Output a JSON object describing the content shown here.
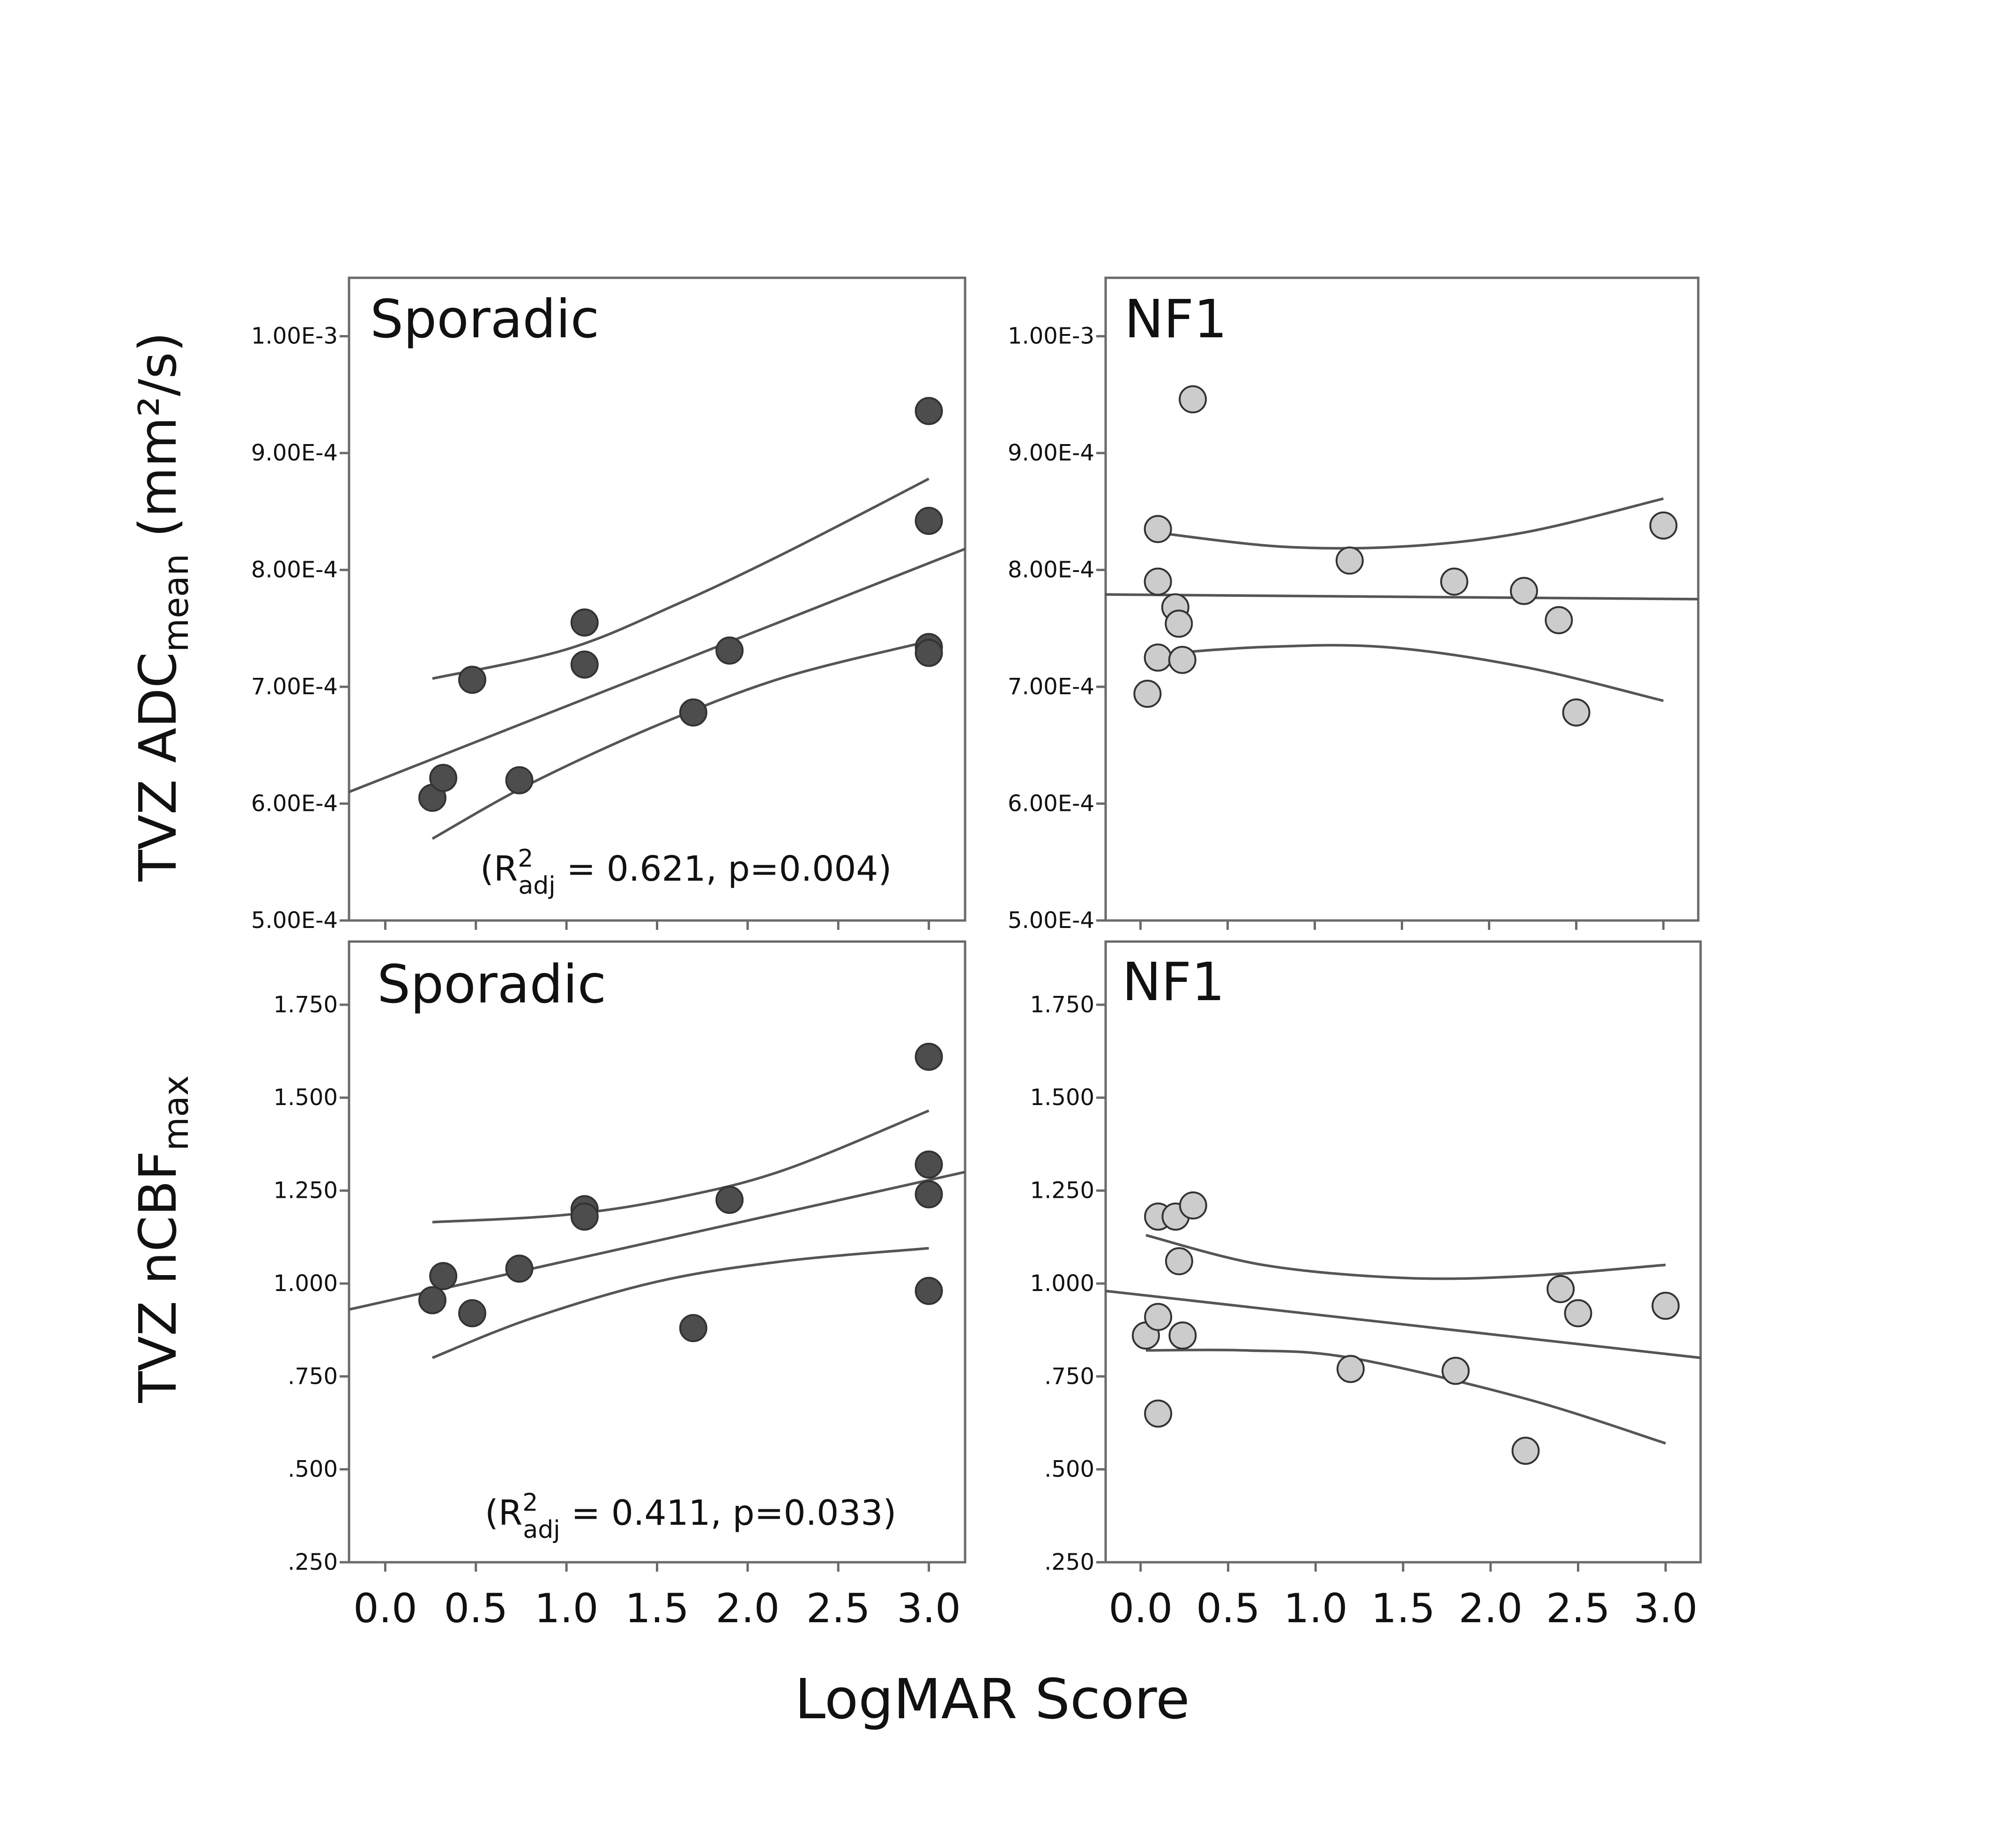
{
  "figure": {
    "y_label_top": {
      "main": "TVZ ADC",
      "sub": "mean",
      "unit": " (mm²/s)"
    },
    "y_label_bottom": {
      "main": "TVZ  nCBF",
      "sub": "max"
    },
    "x_label": "LogMAR Score"
  },
  "colors": {
    "sporadic_marker": "#4d4d4d",
    "nf1_marker": "#cccccc",
    "marker_edge": "#333333",
    "line": "#555555",
    "frame": "#6a6a6a"
  },
  "chart_data": [
    {
      "id": "adc-sporadic",
      "type": "scatter",
      "title": "Sporadic",
      "annotation": {
        "prefix": "(R",
        "sup": "2",
        "sub": "adj",
        "suffix": " = 0.621, p=0.004)"
      },
      "marker_style": "dark",
      "xlim": [
        -0.2,
        3.2
      ],
      "ylim": [
        0.0005,
        0.00105
      ],
      "xticks": [
        0.0,
        0.5,
        1.0,
        1.5,
        2.0,
        2.5,
        3.0
      ],
      "xtick_labels": [
        "0.0",
        "0.5",
        "1.0",
        "1.5",
        "2.0",
        "2.5",
        "3.0"
      ],
      "show_xtick_labels": false,
      "yticks": [
        0.0005,
        0.0006,
        0.0007,
        0.0008,
        0.0009,
        0.001
      ],
      "ytick_labels": [
        "5.00E-4",
        "6.00E-4",
        "7.00E-4",
        "8.00E-4",
        "9.00E-4",
        "1.00E-3"
      ],
      "points": [
        [
          0.26,
          0.000605
        ],
        [
          0.32,
          0.000622
        ],
        [
          0.48,
          0.000706
        ],
        [
          0.74,
          0.00062
        ],
        [
          1.1,
          0.000755
        ],
        [
          1.1,
          0.000719
        ],
        [
          1.7,
          0.000678
        ],
        [
          1.9,
          0.000731
        ],
        [
          3.0,
          0.000936
        ],
        [
          3.0,
          0.000842
        ],
        [
          3.0,
          0.000734
        ],
        [
          3.0,
          0.000729
        ]
      ],
      "fit": {
        "x": [
          -0.2,
          3.2
        ],
        "y": [
          0.00061,
          0.000818
        ]
      },
      "ci_upper": {
        "x": [
          0.26,
          1.0,
          1.6,
          2.2,
          3.0
        ],
        "y": [
          0.000707,
          0.000732,
          0.00077,
          0.000814,
          0.000878
        ]
      },
      "ci_lower": {
        "x": [
          0.26,
          0.8,
          1.5,
          2.2,
          3.0
        ],
        "y": [
          0.00057,
          0.000617,
          0.000667,
          0.000708,
          0.000739
        ]
      }
    },
    {
      "id": "adc-nf1",
      "type": "scatter",
      "title": "NF1",
      "marker_style": "light",
      "xlim": [
        -0.2,
        3.2
      ],
      "ylim": [
        0.0005,
        0.00105
      ],
      "xticks": [
        0.0,
        0.5,
        1.0,
        1.5,
        2.0,
        2.5,
        3.0
      ],
      "xtick_labels": [
        "0.0",
        "0.5",
        "1.0",
        "1.5",
        "2.0",
        "2.5",
        "3.0"
      ],
      "show_xtick_labels": false,
      "yticks": [
        0.0005,
        0.0006,
        0.0007,
        0.0008,
        0.0009,
        0.001
      ],
      "ytick_labels": [
        "5.00E-4",
        "6.00E-4",
        "7.00E-4",
        "8.00E-4",
        "9.00E-4",
        "1.00E-3"
      ],
      "points": [
        [
          0.04,
          0.000694
        ],
        [
          0.1,
          0.000835
        ],
        [
          0.1,
          0.00079
        ],
        [
          0.1,
          0.000725
        ],
        [
          0.2,
          0.000768
        ],
        [
          0.22,
          0.000754
        ],
        [
          0.24,
          0.000723
        ],
        [
          0.3,
          0.000946
        ],
        [
          1.2,
          0.000808
        ],
        [
          1.8,
          0.00079
        ],
        [
          2.2,
          0.000782
        ],
        [
          2.4,
          0.000757
        ],
        [
          2.5,
          0.000678
        ],
        [
          3.0,
          0.000838
        ]
      ],
      "fit": {
        "x": [
          -0.2,
          3.2
        ],
        "y": [
          0.000779,
          0.000775
        ]
      },
      "ci_upper": {
        "x": [
          0.04,
          0.8,
          1.5,
          2.2,
          3.0
        ],
        "y": [
          0.000833,
          0.00082,
          0.00082,
          0.000832,
          0.000861
        ]
      },
      "ci_lower": {
        "x": [
          0.04,
          0.7,
          1.4,
          2.2,
          3.0
        ],
        "y": [
          0.000727,
          0.000734,
          0.000734,
          0.000717,
          0.000688
        ]
      }
    },
    {
      "id": "ncbf-sporadic",
      "type": "scatter",
      "title": "Sporadic",
      "annotation": {
        "prefix": "(R",
        "sup": "2",
        "sub": "adj",
        "suffix": " = 0.411, p=0.033)"
      },
      "marker_style": "dark",
      "xlim": [
        -0.2,
        3.2
      ],
      "ylim": [
        0.25,
        1.92
      ],
      "xticks": [
        0.0,
        0.5,
        1.0,
        1.5,
        2.0,
        2.5,
        3.0
      ],
      "xtick_labels": [
        "0.0",
        "0.5",
        "1.0",
        "1.5",
        "2.0",
        "2.5",
        "3.0"
      ],
      "show_xtick_labels": true,
      "yticks": [
        0.25,
        0.5,
        0.75,
        1.0,
        1.25,
        1.5,
        1.75
      ],
      "ytick_labels": [
        ".250",
        ".500",
        ".750",
        "1.000",
        "1.250",
        "1.500",
        "1.750"
      ],
      "points": [
        [
          0.26,
          0.955
        ],
        [
          0.32,
          1.02
        ],
        [
          0.48,
          0.92
        ],
        [
          0.74,
          1.04
        ],
        [
          1.1,
          1.2
        ],
        [
          1.1,
          1.18
        ],
        [
          1.7,
          0.88
        ],
        [
          1.9,
          1.225
        ],
        [
          3.0,
          1.61
        ],
        [
          3.0,
          1.32
        ],
        [
          3.0,
          1.24
        ],
        [
          3.0,
          0.98
        ]
      ],
      "fit": {
        "x": [
          -0.2,
          3.2
        ],
        "y": [
          0.93,
          1.3
        ]
      },
      "ci_upper": {
        "x": [
          0.26,
          1.0,
          1.6,
          2.2,
          3.0
        ],
        "y": [
          1.165,
          1.185,
          1.23,
          1.305,
          1.465
        ]
      },
      "ci_lower": {
        "x": [
          0.26,
          0.8,
          1.5,
          2.2,
          3.0
        ],
        "y": [
          0.8,
          0.905,
          1.005,
          1.06,
          1.095
        ]
      }
    },
    {
      "id": "ncbf-nf1",
      "type": "scatter",
      "title": "NF1",
      "marker_style": "light",
      "xlim": [
        -0.2,
        3.2
      ],
      "ylim": [
        0.25,
        1.92
      ],
      "xticks": [
        0.0,
        0.5,
        1.0,
        1.5,
        2.0,
        2.5,
        3.0
      ],
      "xtick_labels": [
        "0.0",
        "0.5",
        "1.0",
        "1.5",
        "2.0",
        "2.5",
        "3.0"
      ],
      "show_xtick_labels": true,
      "yticks": [
        0.25,
        0.5,
        0.75,
        1.0,
        1.25,
        1.5,
        1.75
      ],
      "ytick_labels": [
        ".250",
        ".500",
        ".750",
        "1.000",
        "1.250",
        "1.500",
        "1.750"
      ],
      "points": [
        [
          0.03,
          0.86
        ],
        [
          0.1,
          1.18
        ],
        [
          0.1,
          0.91
        ],
        [
          0.1,
          0.65
        ],
        [
          0.2,
          1.18
        ],
        [
          0.22,
          1.06
        ],
        [
          0.24,
          0.86
        ],
        [
          0.3,
          1.21
        ],
        [
          1.2,
          0.77
        ],
        [
          1.8,
          0.765
        ],
        [
          2.2,
          0.55
        ],
        [
          2.4,
          0.985
        ],
        [
          2.5,
          0.92
        ],
        [
          3.0,
          0.94
        ]
      ],
      "fit": {
        "x": [
          -0.2,
          3.2
        ],
        "y": [
          0.98,
          0.8
        ]
      },
      "ci_upper": {
        "x": [
          0.03,
          0.7,
          1.5,
          2.2,
          3.0
        ],
        "y": [
          1.13,
          1.05,
          1.015,
          1.02,
          1.05
        ]
      },
      "ci_lower": {
        "x": [
          0.03,
          0.6,
          1.2,
          2.2,
          3.0
        ],
        "y": [
          0.82,
          0.82,
          0.8,
          0.69,
          0.57
        ]
      }
    }
  ]
}
